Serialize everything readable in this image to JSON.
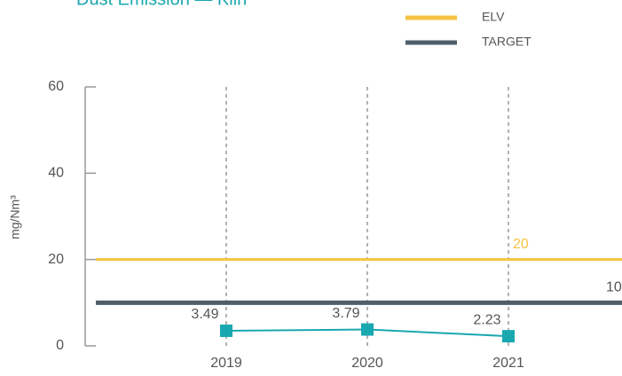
{
  "chart_data": {
    "type": "line",
    "title": "Dust Emission — Kiln",
    "y_label": "mg/Nm³",
    "categories": [
      "2019",
      "2020",
      "2021"
    ],
    "values": [
      3.49,
      3.79,
      2.23
    ],
    "color": "#1aa8b0",
    "reference_lines": [
      {
        "name": "ELV",
        "value": 20,
        "color": "#f5c342"
      },
      {
        "name": "TARGET",
        "value": 10,
        "color": "#4f5f6a"
      }
    ],
    "ylim": [
      0,
      60
    ],
    "yticks": [
      0,
      20,
      40,
      60
    ]
  }
}
